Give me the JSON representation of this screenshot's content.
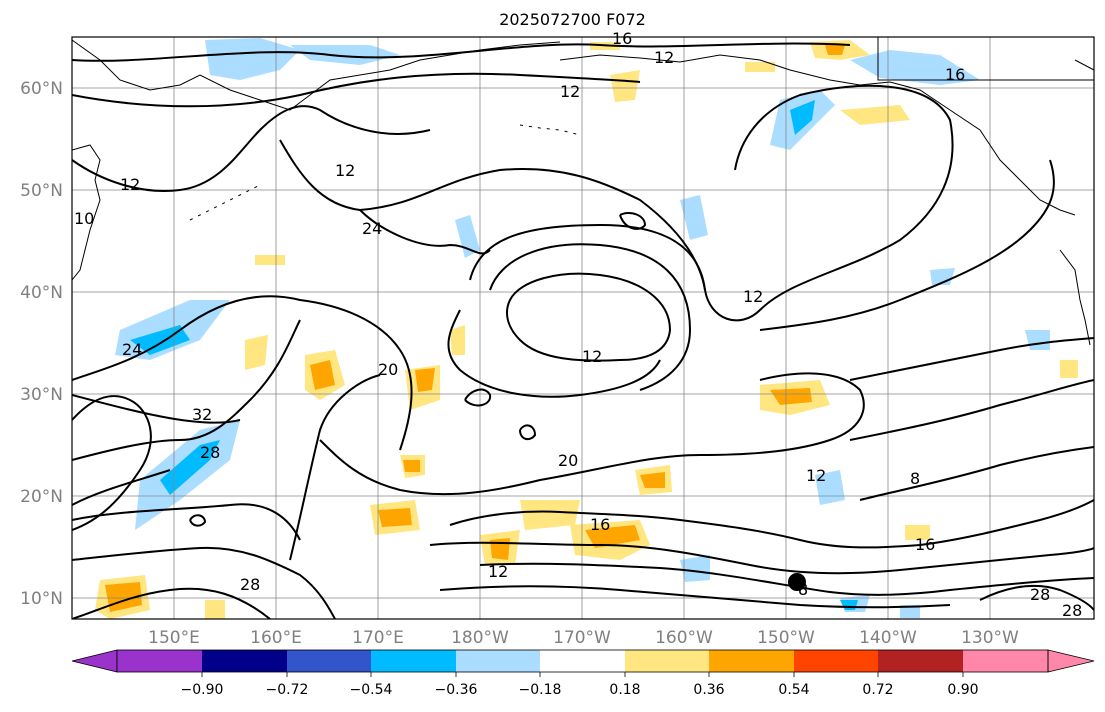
{
  "title": "2025072700 F072",
  "lat_labels": [
    "60°N",
    "50°N",
    "40°N",
    "30°N",
    "20°N",
    "10°N"
  ],
  "lon_labels": [
    "150°E",
    "160°E",
    "170°E",
    "180°W",
    "170°W",
    "160°W",
    "150°W",
    "140°W",
    "130°W"
  ],
  "colorbar": {
    "tick_labels": [
      "−0.90",
      "−0.72",
      "−0.54",
      "−0.36",
      "−0.18",
      "0.18",
      "0.36",
      "0.54",
      "0.72",
      "0.90"
    ],
    "colors": [
      "#9933cc",
      "#000088",
      "#3355cc",
      "#00bbff",
      "#aaddff",
      "#ffffff",
      "#ffe680",
      "#ffa500",
      "#ff4400",
      "#b22222",
      "#ff88aa"
    ]
  },
  "contour_labels": [
    "12",
    "16",
    "12",
    "16",
    "12",
    "12",
    "24",
    "10",
    "12",
    "24",
    "20",
    "12",
    "32",
    "28",
    "20",
    "12",
    "8",
    "16",
    "12",
    "16",
    "28",
    "28",
    "28",
    "8"
  ],
  "colors": {
    "contour": "#000000",
    "grid": "#888888",
    "axis_text": "#808080"
  }
}
